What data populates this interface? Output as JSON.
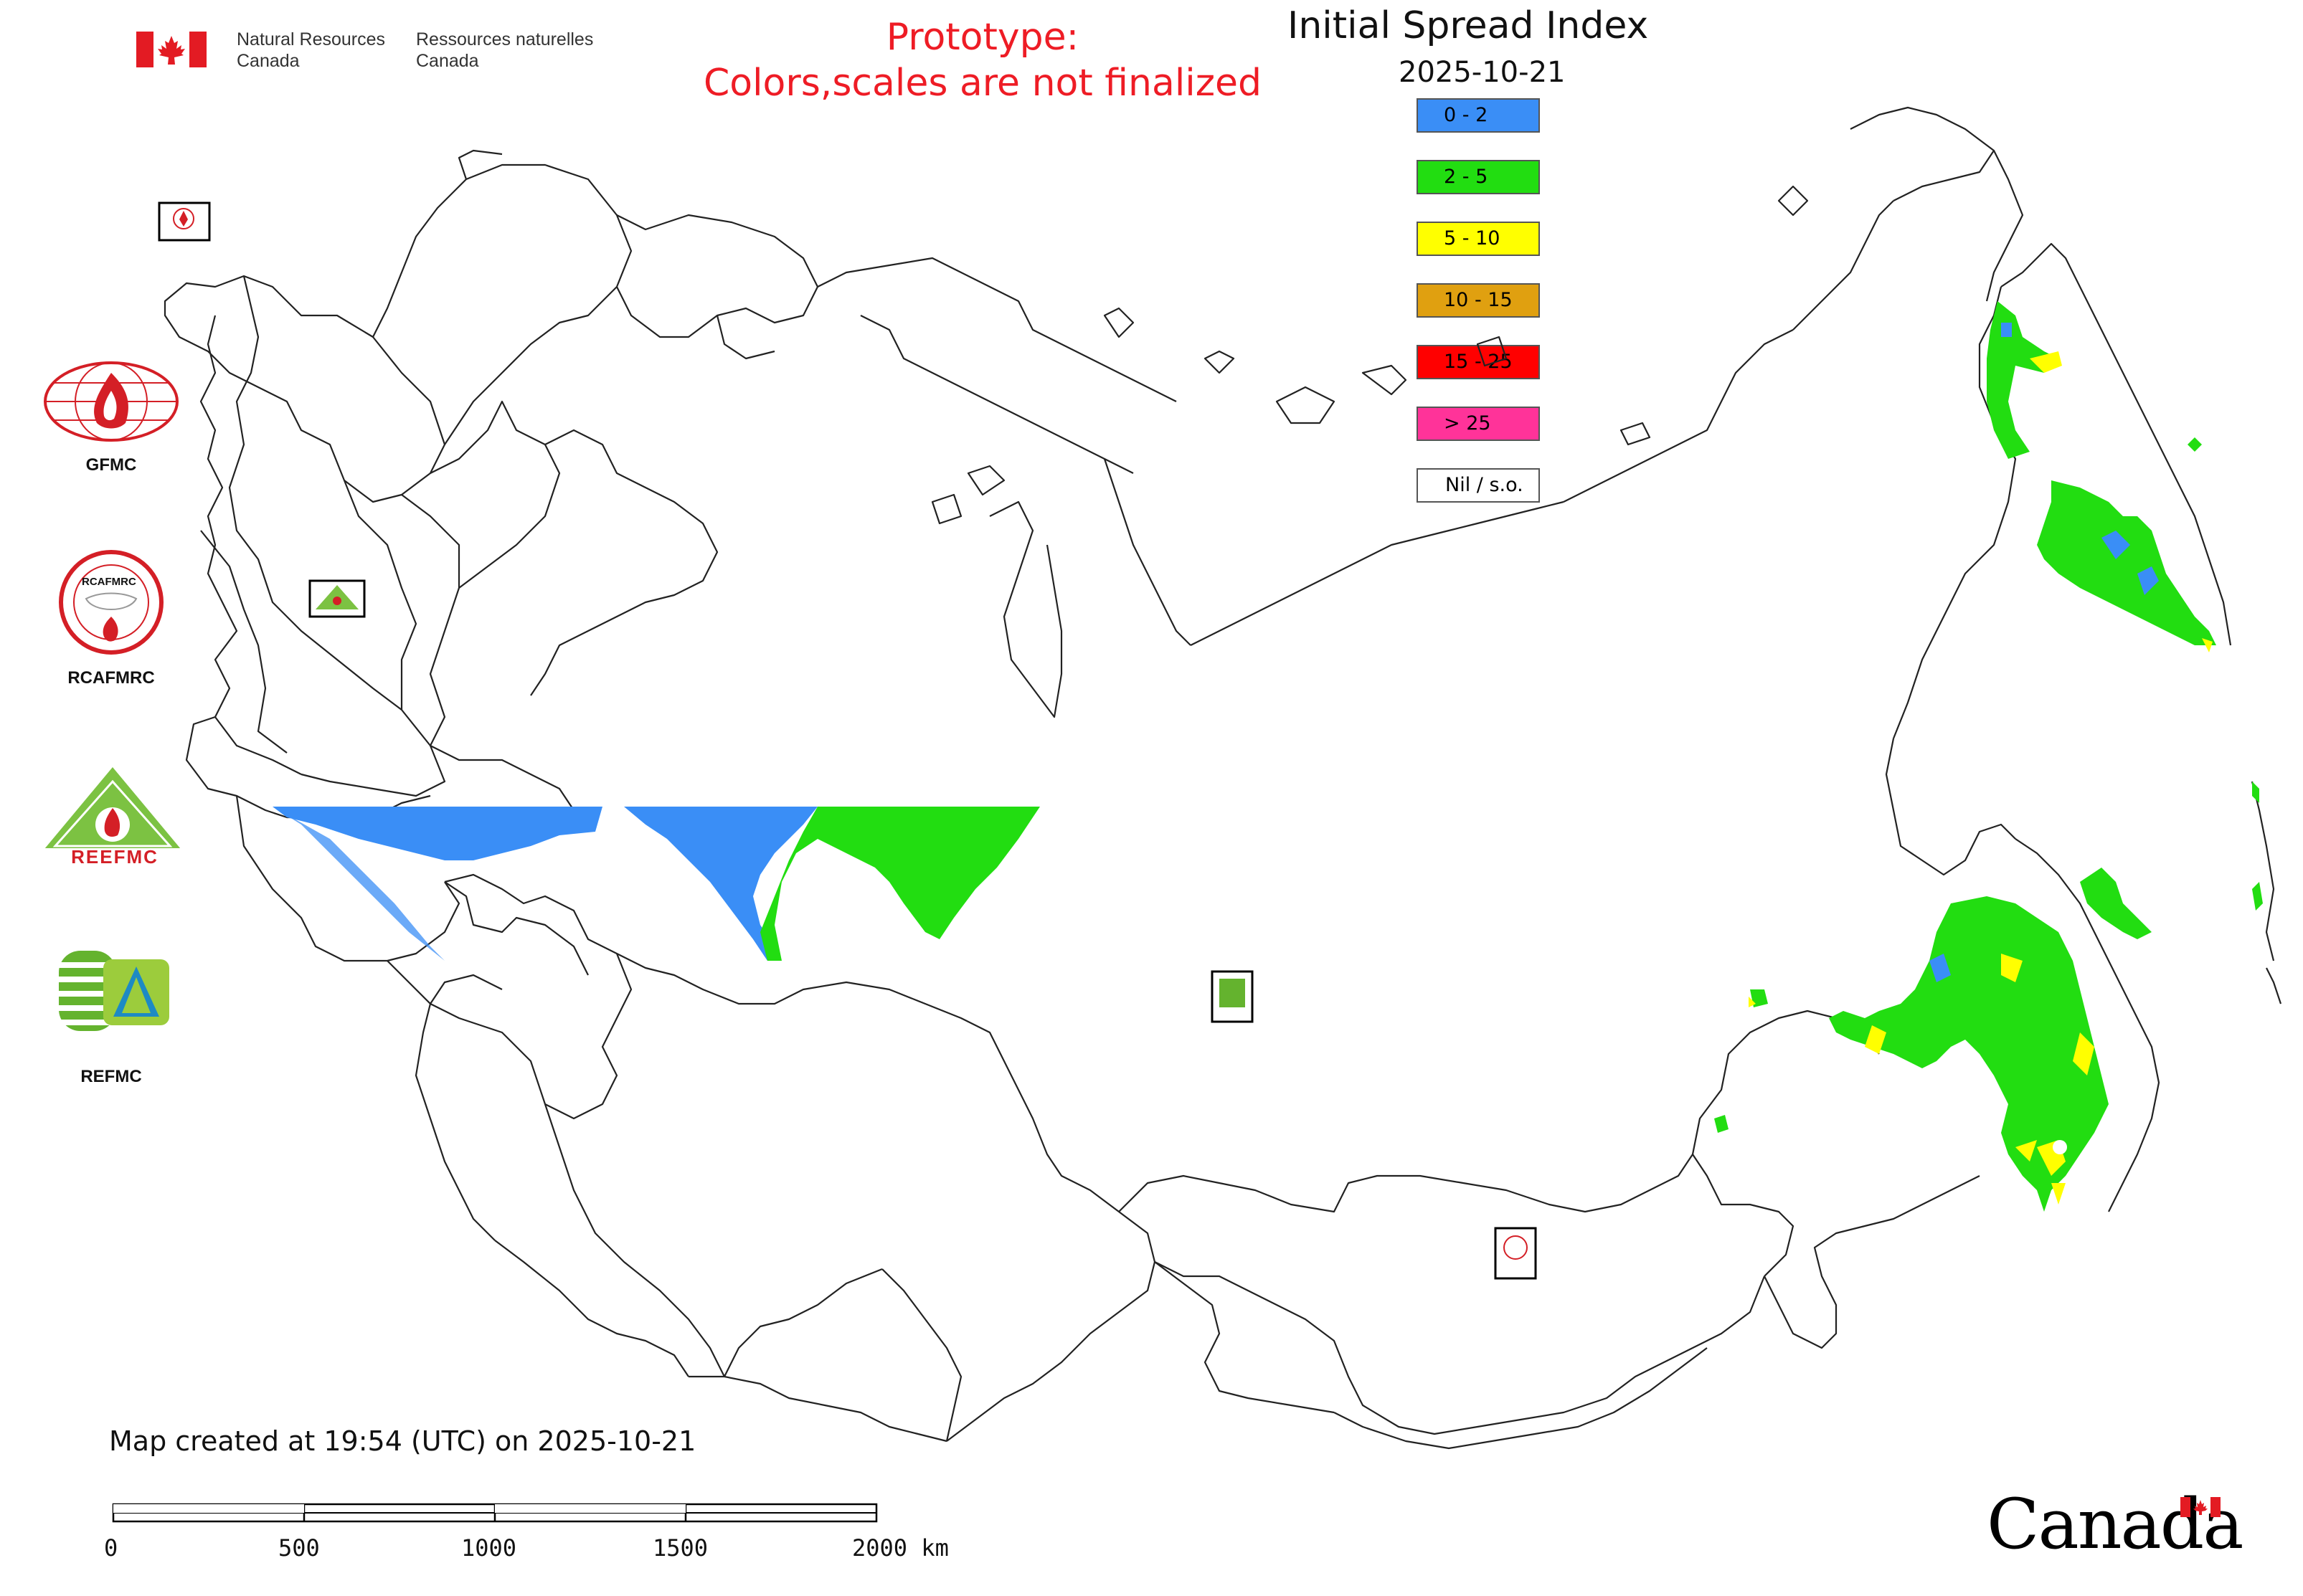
{
  "header": {
    "org_en_line1": "Natural Resources",
    "org_en_line2": "Canada",
    "org_fr_line1": "Ressources naturelles",
    "org_fr_line2": "Canada"
  },
  "prototype_notice": {
    "line1": "Prototype:",
    "line2": "Colors,scales are not finalized"
  },
  "map": {
    "title": "Initial Spread Index",
    "date": "2025-10-21"
  },
  "legend": [
    {
      "label": "0 - 2",
      "color": "#3a8ef6"
    },
    {
      "label": "2 - 5",
      "color": "#22dd11"
    },
    {
      "label": "5 - 10",
      "color": "#ffff00"
    },
    {
      "label": "10 - 15",
      "color": "#e0a010"
    },
    {
      "label": "15 - 25",
      "color": "#ff0000"
    },
    {
      "label": "> 25",
      "color": "#ff3399"
    },
    {
      "label": "Nil / s.o.",
      "color": "#ffffff"
    }
  ],
  "side_logos": {
    "gfmc": "GFMC",
    "rcafmrc": "RCAFMRC",
    "reefmc": "REEFMC",
    "refmc": "REFMC",
    "rcafmrc_badge_text": "RCAFMRC",
    "reefmc_badge_text": "REEFMC"
  },
  "footer": {
    "created": "Map created at 19:54 (UTC) on 2025-10-21",
    "scale_ticks": [
      "0",
      "500",
      "1000",
      "1500",
      "2000 km"
    ],
    "wordmark": "Canada"
  },
  "colors": {
    "flag_red": "#e31b23",
    "prototype_red": "#ee1c25",
    "outline": "#222222"
  }
}
